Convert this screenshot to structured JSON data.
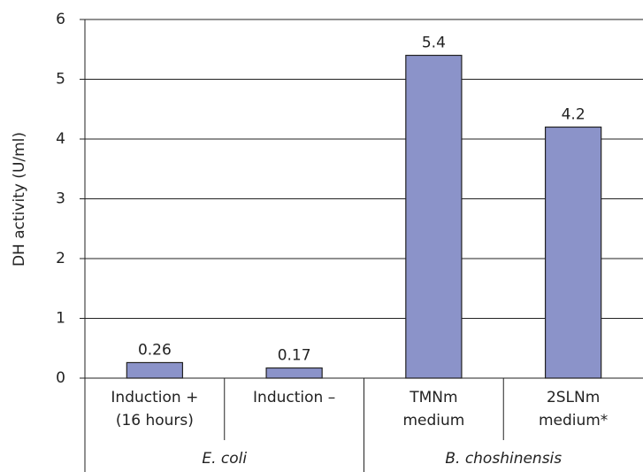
{
  "chart_data": {
    "type": "bar",
    "y_label": "DH activity (U/ml)",
    "categories": [
      "Induction +\n(16 hours)",
      "Induction –",
      "TMNm\nmedium",
      "2SLNm\nmedium*"
    ],
    "group_labels": [
      "E. coli",
      "B. choshinensis"
    ],
    "values": [
      0.26,
      0.17,
      5.4,
      4.2
    ],
    "color": "#8b93c9",
    "ylim": [
      0,
      6
    ],
    "yticks": [
      0,
      1,
      2,
      3,
      4,
      5,
      6
    ],
    "grid": true
  }
}
